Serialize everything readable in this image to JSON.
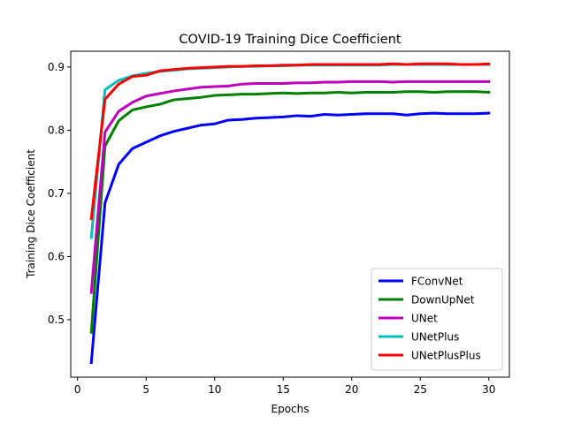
{
  "chart_data": {
    "type": "line",
    "title": "COVID-19 Training Dice Coefficient",
    "xlabel": "Epochs",
    "ylabel": "Training Dice Coefficient",
    "xlim": [
      -0.5,
      31.5
    ],
    "ylim": [
      0.409,
      0.925
    ],
    "xticks": [
      0,
      5,
      10,
      15,
      20,
      25,
      30
    ],
    "yticks": [
      0.5,
      0.6,
      0.7,
      0.8,
      0.9
    ],
    "grid": false,
    "legend_position": "lower-right",
    "x": [
      1,
      2,
      3,
      4,
      5,
      6,
      7,
      8,
      9,
      10,
      11,
      12,
      13,
      14,
      15,
      16,
      17,
      18,
      19,
      20,
      21,
      22,
      23,
      24,
      25,
      26,
      27,
      28,
      29,
      30
    ],
    "series": [
      {
        "name": "FConvNet",
        "color": "#0000ff",
        "values": [
          0.432,
          0.685,
          0.746,
          0.771,
          0.781,
          0.791,
          0.798,
          0.803,
          0.808,
          0.81,
          0.816,
          0.817,
          0.819,
          0.82,
          0.821,
          0.823,
          0.822,
          0.825,
          0.824,
          0.825,
          0.826,
          0.826,
          0.826,
          0.824,
          0.826,
          0.827,
          0.826,
          0.826,
          0.826,
          0.827
        ]
      },
      {
        "name": "DownUpNet",
        "color": "#008000",
        "values": [
          0.48,
          0.775,
          0.815,
          0.832,
          0.837,
          0.841,
          0.848,
          0.85,
          0.852,
          0.855,
          0.856,
          0.857,
          0.857,
          0.858,
          0.859,
          0.858,
          0.859,
          0.859,
          0.86,
          0.859,
          0.86,
          0.86,
          0.86,
          0.861,
          0.861,
          0.86,
          0.861,
          0.861,
          0.861,
          0.86
        ]
      },
      {
        "name": "UNet",
        "color": "#bf00bf",
        "values": [
          0.543,
          0.797,
          0.83,
          0.844,
          0.854,
          0.858,
          0.862,
          0.865,
          0.868,
          0.869,
          0.87,
          0.873,
          0.874,
          0.874,
          0.874,
          0.875,
          0.875,
          0.876,
          0.876,
          0.877,
          0.877,
          0.877,
          0.876,
          0.877,
          0.877,
          0.877,
          0.877,
          0.877,
          0.877,
          0.877
        ]
      },
      {
        "name": "UNetPlus",
        "color": "#00bfbf",
        "values": [
          0.63,
          0.864,
          0.879,
          0.886,
          0.89,
          0.893,
          0.895,
          0.897,
          0.898,
          0.899,
          0.9,
          0.901,
          0.901,
          0.902,
          0.902,
          0.903,
          0.903,
          0.903,
          0.903,
          0.903,
          0.903,
          0.903,
          0.904,
          0.904,
          0.904,
          0.904,
          0.904,
          0.904,
          0.904,
          0.904
        ]
      },
      {
        "name": "UNetPlusPlus",
        "color": "#ff0000",
        "values": [
          0.66,
          0.849,
          0.873,
          0.885,
          0.887,
          0.894,
          0.896,
          0.898,
          0.899,
          0.9,
          0.901,
          0.901,
          0.902,
          0.902,
          0.903,
          0.903,
          0.904,
          0.904,
          0.904,
          0.904,
          0.904,
          0.904,
          0.905,
          0.904,
          0.905,
          0.905,
          0.905,
          0.904,
          0.904,
          0.905
        ]
      }
    ]
  }
}
